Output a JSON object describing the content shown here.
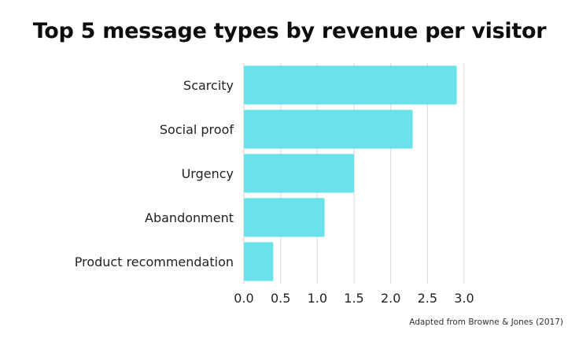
{
  "chart_data": {
    "type": "bar",
    "orientation": "horizontal",
    "title": "Top 5 message types by revenue per visitor",
    "categories": [
      "Scarcity",
      "Social proof",
      "Urgency",
      "Abandonment",
      "Product recommendation"
    ],
    "values": [
      2.9,
      2.3,
      1.5,
      1.1,
      0.4
    ],
    "xlabel": "",
    "ylabel": "",
    "xlim": [
      0,
      3.0
    ],
    "xticks": [
      "0.0",
      "0.5",
      "1.0",
      "1.5",
      "2.0",
      "2.5",
      "3.0"
    ],
    "grid": "vertical",
    "legend": "none",
    "bar_color": "#69e3e9",
    "grid_color": "#d9d9d9",
    "source": "Adapted from Browne & Jones (2017)"
  }
}
